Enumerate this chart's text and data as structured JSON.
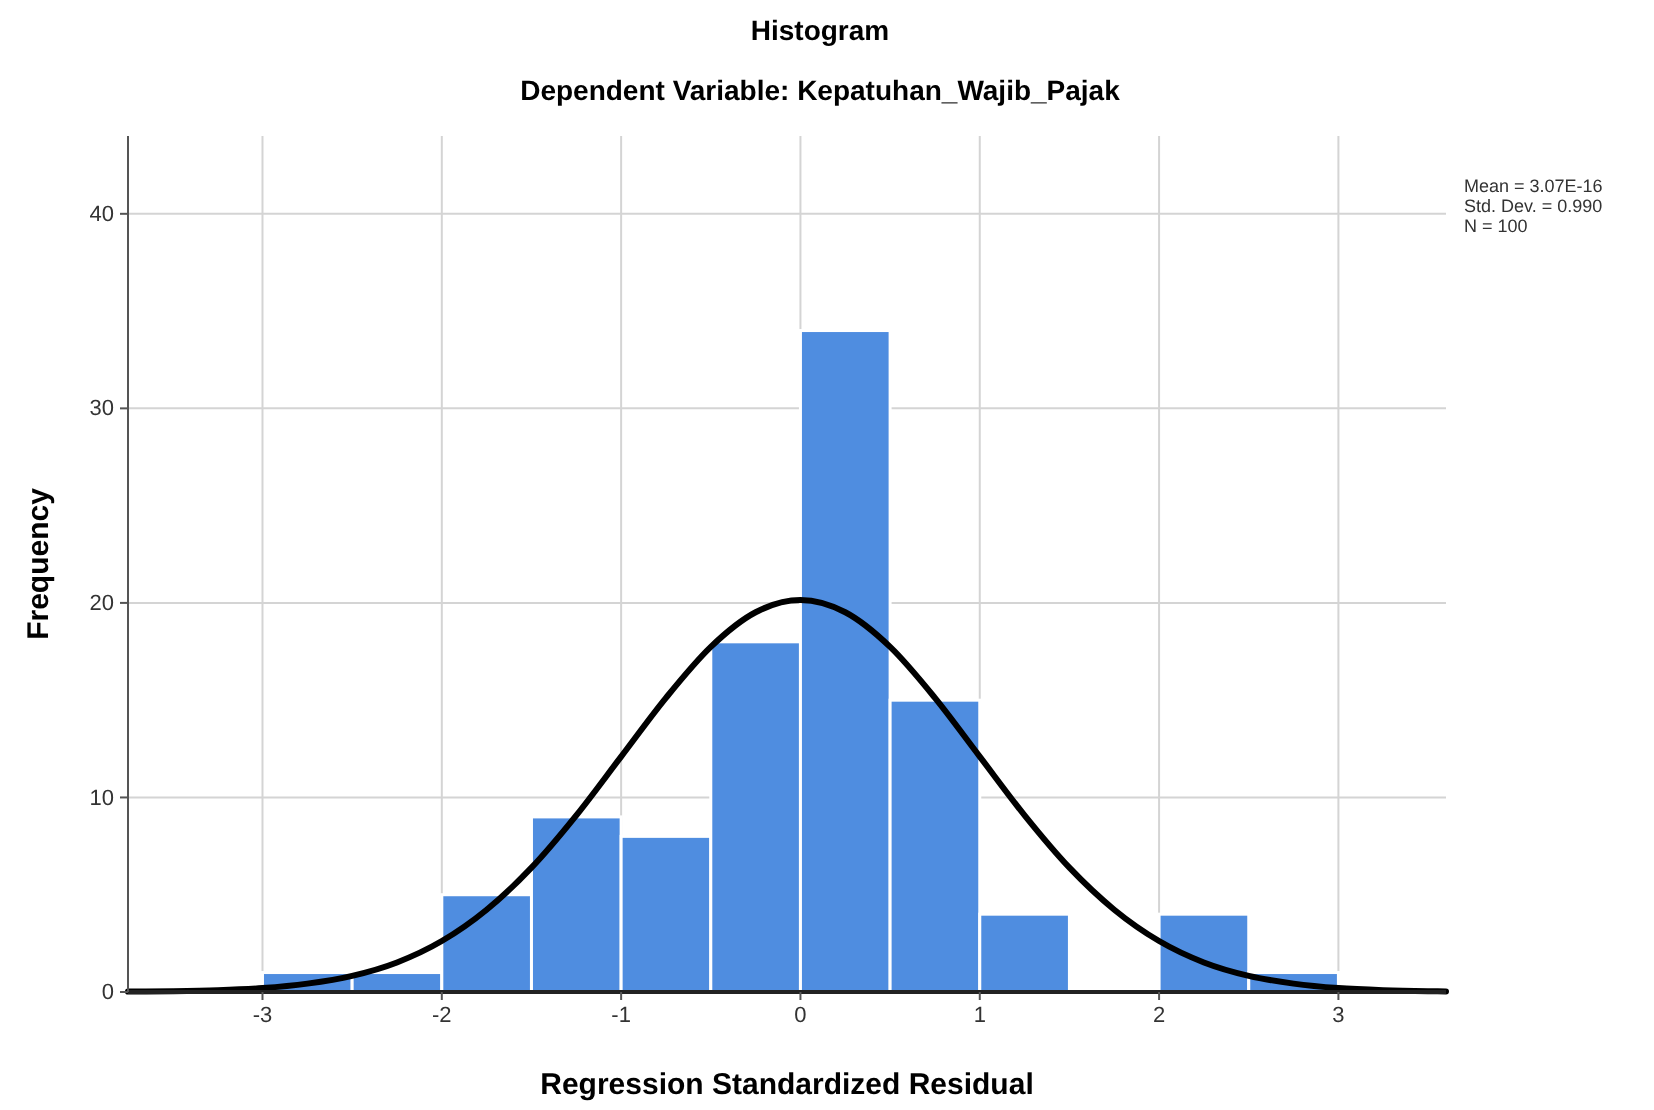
{
  "chart_data": {
    "type": "histogram",
    "title": "Histogram",
    "subtitle": "Dependent Variable: Kepatuhan_Wajib_Pajak",
    "xlabel": "Regression Standardized Residual",
    "ylabel": "Frequency",
    "annotations": [
      "Mean = 3.07E-16",
      "Std. Dev. = 0.990",
      "N = 100"
    ],
    "xlim": [
      -3.75,
      3.6
    ],
    "xticks": [
      -3,
      -2,
      -1,
      0,
      1,
      2,
      3
    ],
    "ylim": [
      0,
      44
    ],
    "yticks": [
      0,
      10,
      20,
      30,
      40
    ],
    "grid": true,
    "series": [
      {
        "color": "#4f8de0",
        "bins": [
          -3,
          -2.5,
          -2,
          -1.5,
          -1,
          -0.5,
          0,
          0.5,
          1,
          1.5,
          2,
          2.5,
          3
        ],
        "values": [
          1,
          1,
          5,
          9,
          8,
          18,
          34,
          15,
          4,
          0,
          4,
          1
        ]
      },
      {
        "type": "line",
        "color": "#000000",
        "x": [
          -3.75,
          -3.5,
          -3.25,
          -3,
          -2.75,
          -2.5,
          -2.25,
          -2,
          -1.75,
          -1.5,
          -1.25,
          -1,
          -0.75,
          -0.5,
          -0.25,
          0,
          0.25,
          0.5,
          0.75,
          1,
          1.25,
          1.5,
          1.75,
          2,
          2.25,
          2.5,
          2.75,
          3,
          3.25,
          3.5,
          3.6
        ],
        "values": [
          0.02,
          0.04,
          0.09,
          0.2,
          0.43,
          0.83,
          1.52,
          2.62,
          4.23,
          6.39,
          9.08,
          12.1,
          15.12,
          17.74,
          19.52,
          20.15,
          19.52,
          17.74,
          15.12,
          12.1,
          9.08,
          6.39,
          4.23,
          2.62,
          1.52,
          0.83,
          0.43,
          0.2,
          0.09,
          0.04,
          0.03
        ]
      }
    ]
  }
}
